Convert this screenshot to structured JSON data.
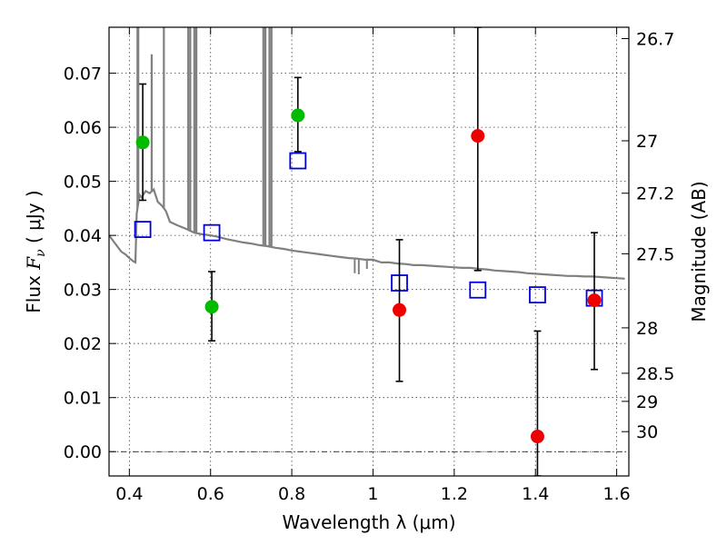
{
  "chart_data": {
    "type": "scatter",
    "title": "",
    "xlabel": "Wavelength  λ (μm)",
    "ylabel": "Flux  F_ν  ( μJy )",
    "ylabel_parts": {
      "pre": "Flux ",
      "var": "F",
      "sub": "ν",
      "post": "  ( μJy )"
    },
    "y2label": "Magnitude (AB)",
    "xlim": [
      0.35,
      1.63
    ],
    "ylim": [
      -0.0045,
      0.0785
    ],
    "grid": true,
    "x_ticks": [
      {
        "value": 0.4,
        "label": "0.4"
      },
      {
        "value": 0.6,
        "label": "0.6"
      },
      {
        "value": 0.8,
        "label": "0.8"
      },
      {
        "value": 1.0,
        "label": "1"
      },
      {
        "value": 1.2,
        "label": "1.2"
      },
      {
        "value": 1.4,
        "label": "1.4"
      },
      {
        "value": 1.6,
        "label": "1.6"
      }
    ],
    "y_ticks": [
      {
        "value": 0.0,
        "label": "0.00"
      },
      {
        "value": 0.01,
        "label": "0.01"
      },
      {
        "value": 0.02,
        "label": "0.02"
      },
      {
        "value": 0.03,
        "label": "0.03"
      },
      {
        "value": 0.04,
        "label": "0.04"
      },
      {
        "value": 0.05,
        "label": "0.05"
      },
      {
        "value": 0.06,
        "label": "0.06"
      },
      {
        "value": 0.07,
        "label": "0.07"
      }
    ],
    "mag_ticks": [
      {
        "flux": 0.0764,
        "label": "26.7"
      },
      {
        "flux": 0.0575,
        "label": "27"
      },
      {
        "flux": 0.0478,
        "label": "27.2"
      },
      {
        "flux": 0.0366,
        "label": "27.5"
      },
      {
        "flux": 0.0229,
        "label": "28"
      },
      {
        "flux": 0.0145,
        "label": "28.5"
      },
      {
        "flux": 0.0093,
        "label": "29"
      },
      {
        "flux": 0.0037,
        "label": "30"
      }
    ],
    "series": [
      {
        "kind": "spectrum",
        "color": "#808080",
        "x": [
          0.35,
          0.36,
          0.37,
          0.38,
          0.39,
          0.4,
          0.41,
          0.415,
          0.418,
          0.425,
          0.43,
          0.44,
          0.45,
          0.46,
          0.47,
          0.48,
          0.49,
          0.5,
          0.52,
          0.54,
          0.56,
          0.58,
          0.6,
          0.62,
          0.64,
          0.66,
          0.68,
          0.7,
          0.72,
          0.74,
          0.76,
          0.78,
          0.8,
          0.82,
          0.84,
          0.86,
          0.88,
          0.9,
          0.92,
          0.94,
          0.96,
          0.98,
          1.0,
          1.02,
          1.04,
          1.06,
          1.08,
          1.1,
          1.12,
          1.14,
          1.16,
          1.18,
          1.2,
          1.22,
          1.24,
          1.26,
          1.28,
          1.3,
          1.32,
          1.34,
          1.36,
          1.38,
          1.4,
          1.42,
          1.44,
          1.46,
          1.48,
          1.5,
          1.52,
          1.54,
          1.56,
          1.58,
          1.6,
          1.62
        ],
        "y": [
          0.04,
          0.039,
          0.038,
          0.037,
          0.0365,
          0.0358,
          0.0352,
          0.035,
          0.044,
          0.0475,
          0.047,
          0.0482,
          0.0478,
          0.0485,
          0.0462,
          0.0455,
          0.0445,
          0.0425,
          0.0418,
          0.0412,
          0.0405,
          0.0402,
          0.04,
          0.0397,
          0.0393,
          0.039,
          0.0387,
          0.0385,
          0.0382,
          0.038,
          0.0377,
          0.0375,
          0.0372,
          0.037,
          0.0368,
          0.0366,
          0.0364,
          0.0362,
          0.036,
          0.0358,
          0.0357,
          0.0355,
          0.0355,
          0.035,
          0.035,
          0.0348,
          0.0347,
          0.0345,
          0.0345,
          0.0344,
          0.0343,
          0.0342,
          0.0341,
          0.034,
          0.034,
          0.0338,
          0.0337,
          0.0335,
          0.0334,
          0.0333,
          0.0332,
          0.033,
          0.0329,
          0.0328,
          0.0327,
          0.0326,
          0.0325,
          0.0325,
          0.0324,
          0.0324,
          0.0323,
          0.0322,
          0.0321,
          0.032
        ],
        "spikes": [
          {
            "x": 0.42,
            "y": 0.079
          },
          {
            "x": 0.422,
            "y": 0.079
          },
          {
            "x": 0.455,
            "y": 0.0735
          },
          {
            "x": 0.485,
            "y": 0.079
          },
          {
            "x": 0.545,
            "y": 0.079
          },
          {
            "x": 0.55,
            "y": 0.079
          },
          {
            "x": 0.56,
            "y": 0.079
          },
          {
            "x": 0.565,
            "y": 0.079
          },
          {
            "x": 0.73,
            "y": 0.079
          },
          {
            "x": 0.735,
            "y": 0.079
          },
          {
            "x": 0.745,
            "y": 0.079
          },
          {
            "x": 0.75,
            "y": 0.079
          }
        ],
        "dips": [
          {
            "x": 0.955,
            "y": 0.033
          },
          {
            "x": 0.965,
            "y": 0.0328
          },
          {
            "x": 0.985,
            "y": 0.0338
          }
        ]
      },
      {
        "kind": "model",
        "color": "#0000dd",
        "x": [
          0.433,
          0.603,
          0.815,
          1.065,
          1.258,
          1.405,
          1.545
        ],
        "y": [
          0.0411,
          0.0405,
          0.0538,
          0.0312,
          0.0299,
          0.029,
          0.0284
        ]
      },
      {
        "kind": "green_points",
        "color": "#00bb00",
        "x": [
          0.433,
          0.603,
          0.815
        ],
        "y": [
          0.0572,
          0.0268,
          0.0622
        ],
        "yerr_low": [
          0.0465,
          0.0205,
          0.0555
        ],
        "yerr_high": [
          0.068,
          0.0333,
          0.0692
        ]
      },
      {
        "kind": "red_points",
        "color": "#ee0000",
        "x": [
          1.065,
          1.258,
          1.405,
          1.545
        ],
        "y": [
          0.0262,
          0.0584,
          0.0028,
          0.028
        ],
        "yerr_low": [
          0.013,
          0.0335,
          -0.0045,
          0.0152
        ],
        "yerr_high": [
          0.0392,
          0.0785,
          0.0223,
          0.0405
        ]
      }
    ]
  }
}
